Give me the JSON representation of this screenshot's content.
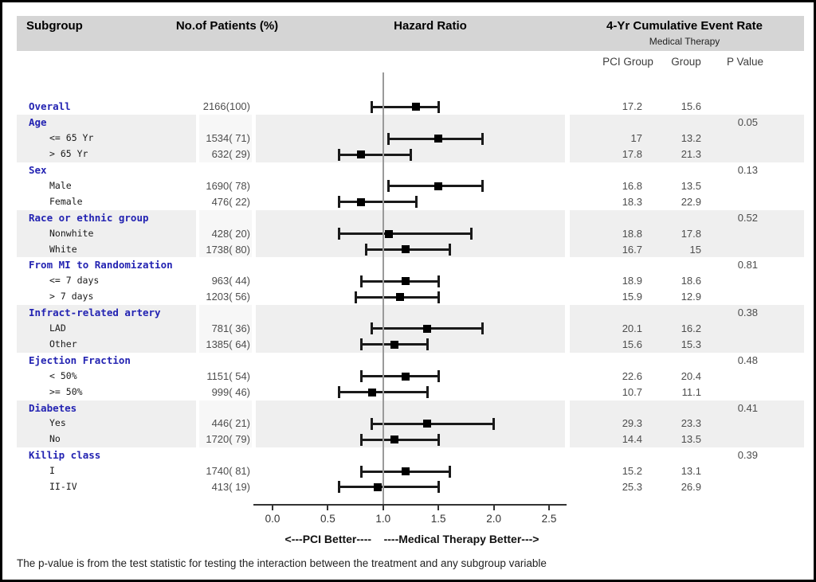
{
  "header": {
    "col_subgroup": "Subgroup",
    "col_patients": "No.of Patients (%)",
    "col_hazard": "Hazard Ratio",
    "col_event_rate": "4-Yr Cumulative Event Rate",
    "event_rate_subtitle": "Medical Therapy",
    "col_pci_group": "PCI Group",
    "col_group": "Group",
    "col_pvalue": "P Value"
  },
  "footnote": "The p-value is from the test statistic for testing the interaction between the treatment and any subgroup variable",
  "chart_data": {
    "type": "forest",
    "title": "Hazard Ratio",
    "axis": {
      "min": 0.0,
      "max": 2.5,
      "ticks": [
        0.0,
        0.5,
        1.0,
        1.5,
        2.0,
        2.5
      ],
      "reference_line": 1.0,
      "label": "<---PCI Better----    ----Medical Therapy Better--->"
    },
    "rows": [
      {
        "kind": "overall",
        "label": "Overall",
        "patients": "2166(100)",
        "hr": 1.3,
        "lo": 0.9,
        "hi": 1.5,
        "pci": "17.2",
        "mt": "15.6"
      },
      {
        "kind": "group",
        "label": "Age",
        "p": "0.05",
        "shaded": true
      },
      {
        "kind": "item",
        "label": "<= 65 Yr",
        "patients": "1534( 71)",
        "hr": 1.5,
        "lo": 1.05,
        "hi": 1.9,
        "pci": "17",
        "mt": "13.2"
      },
      {
        "kind": "item",
        "label": "> 65 Yr",
        "patients": "632( 29)",
        "hr": 0.8,
        "lo": 0.6,
        "hi": 1.25,
        "pci": "17.8",
        "mt": "21.3"
      },
      {
        "kind": "group",
        "label": "Sex",
        "p": "0.13",
        "shaded": false
      },
      {
        "kind": "item",
        "label": "Male",
        "patients": "1690( 78)",
        "hr": 1.5,
        "lo": 1.05,
        "hi": 1.9,
        "pci": "16.8",
        "mt": "13.5"
      },
      {
        "kind": "item",
        "label": "Female",
        "patients": "476( 22)",
        "hr": 0.8,
        "lo": 0.6,
        "hi": 1.3,
        "pci": "18.3",
        "mt": "22.9"
      },
      {
        "kind": "group",
        "label": "Race or ethnic group",
        "p": "0.52",
        "shaded": true
      },
      {
        "kind": "item",
        "label": "Nonwhite",
        "patients": "428( 20)",
        "hr": 1.05,
        "lo": 0.6,
        "hi": 1.8,
        "pci": "18.8",
        "mt": "17.8"
      },
      {
        "kind": "item",
        "label": "White",
        "patients": "1738( 80)",
        "hr": 1.2,
        "lo": 0.85,
        "hi": 1.6,
        "pci": "16.7",
        "mt": "15"
      },
      {
        "kind": "group",
        "label": "From MI to Randomization",
        "p": "0.81",
        "shaded": false
      },
      {
        "kind": "item",
        "label": "<= 7 days",
        "patients": "963( 44)",
        "hr": 1.2,
        "lo": 0.8,
        "hi": 1.5,
        "pci": "18.9",
        "mt": "18.6"
      },
      {
        "kind": "item",
        "label": "> 7 days",
        "patients": "1203( 56)",
        "hr": 1.15,
        "lo": 0.75,
        "hi": 1.5,
        "pci": "15.9",
        "mt": "12.9"
      },
      {
        "kind": "group",
        "label": "Infract-related artery",
        "p": "0.38",
        "shaded": true
      },
      {
        "kind": "item",
        "label": "LAD",
        "patients": "781( 36)",
        "hr": 1.4,
        "lo": 0.9,
        "hi": 1.9,
        "pci": "20.1",
        "mt": "16.2"
      },
      {
        "kind": "item",
        "label": "Other",
        "patients": "1385( 64)",
        "hr": 1.1,
        "lo": 0.8,
        "hi": 1.4,
        "pci": "15.6",
        "mt": "15.3"
      },
      {
        "kind": "group",
        "label": "Ejection Fraction",
        "p": "0.48",
        "shaded": false
      },
      {
        "kind": "item",
        "label": "< 50%",
        "patients": "1151( 54)",
        "hr": 1.2,
        "lo": 0.8,
        "hi": 1.5,
        "pci": "22.6",
        "mt": "20.4"
      },
      {
        "kind": "item",
        "label": ">= 50%",
        "patients": "999( 46)",
        "hr": 0.9,
        "lo": 0.6,
        "hi": 1.4,
        "pci": "10.7",
        "mt": "11.1"
      },
      {
        "kind": "group",
        "label": "Diabetes",
        "p": "0.41",
        "shaded": true
      },
      {
        "kind": "item",
        "label": "Yes",
        "patients": "446( 21)",
        "hr": 1.4,
        "lo": 0.9,
        "hi": 2.0,
        "pci": "29.3",
        "mt": "23.3"
      },
      {
        "kind": "item",
        "label": "No",
        "patients": "1720( 79)",
        "hr": 1.1,
        "lo": 0.8,
        "hi": 1.5,
        "pci": "14.4",
        "mt": "13.5"
      },
      {
        "kind": "group",
        "label": "Killip class",
        "p": "0.39",
        "shaded": false
      },
      {
        "kind": "item",
        "label": "I",
        "patients": "1740( 81)",
        "hr": 1.2,
        "lo": 0.8,
        "hi": 1.6,
        "pci": "15.2",
        "mt": "13.1"
      },
      {
        "kind": "item",
        "label": "II-IV",
        "patients": "413( 19)",
        "hr": 0.95,
        "lo": 0.6,
        "hi": 1.5,
        "pci": "25.3",
        "mt": "26.9"
      }
    ],
    "colors": {
      "band_shade": "#efefef",
      "band_shade_mid": "#f7f7f7",
      "header_band": "#d5d5d5",
      "group_label_blue": "#2323b2",
      "marker_black": "#000000",
      "reference_gray": "#9a9a9a"
    }
  }
}
